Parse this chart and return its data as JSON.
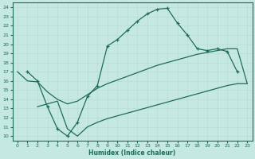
{
  "xlabel": "Humidex (Indice chaleur)",
  "xlim": [
    -0.5,
    23.5
  ],
  "ylim": [
    9.5,
    24.5
  ],
  "xticks": [
    0,
    1,
    2,
    3,
    4,
    5,
    6,
    7,
    8,
    9,
    10,
    11,
    12,
    13,
    14,
    15,
    16,
    17,
    18,
    19,
    20,
    21,
    22,
    23
  ],
  "yticks": [
    10,
    11,
    12,
    13,
    14,
    15,
    16,
    17,
    18,
    19,
    20,
    21,
    22,
    23,
    24
  ],
  "bg_color": "#c5e8e0",
  "grid_color": "#aad4cc",
  "line_color": "#1f6b5a",
  "curve_top_x": [
    1,
    2,
    3,
    4,
    5,
    6,
    7,
    8,
    9,
    10,
    11,
    12,
    13,
    14,
    15,
    16,
    17,
    18,
    19,
    20,
    21,
    22
  ],
  "curve_top_y": [
    17.0,
    16.0,
    13.2,
    10.8,
    10.0,
    11.5,
    14.3,
    15.5,
    19.8,
    20.5,
    21.5,
    22.5,
    23.3,
    23.8,
    23.9,
    22.3,
    21.0,
    19.5,
    19.3,
    19.5,
    19.2,
    17.0
  ],
  "curve_mid_x": [
    0,
    1,
    2,
    3,
    4,
    5,
    6,
    7,
    8,
    9,
    10,
    11,
    12,
    13,
    14,
    15,
    16,
    17,
    18,
    19,
    20,
    21,
    22,
    23
  ],
  "curve_mid_y": [
    17.0,
    16.0,
    15.9,
    14.8,
    14.0,
    13.5,
    13.8,
    14.5,
    15.2,
    15.7,
    16.1,
    16.5,
    16.9,
    17.3,
    17.7,
    18.0,
    18.3,
    18.6,
    18.9,
    19.1,
    19.3,
    19.5,
    19.5,
    15.7
  ],
  "curve_bot_x": [
    2,
    3,
    4,
    5,
    6,
    7,
    8,
    9,
    10,
    11,
    12,
    13,
    14,
    15,
    16,
    17,
    18,
    19,
    20,
    21,
    22,
    23
  ],
  "curve_bot_y": [
    13.2,
    13.5,
    13.8,
    10.8,
    10.0,
    11.0,
    11.5,
    11.9,
    12.2,
    12.5,
    12.8,
    13.1,
    13.4,
    13.7,
    14.0,
    14.3,
    14.6,
    14.9,
    15.2,
    15.5,
    15.7,
    15.7
  ]
}
